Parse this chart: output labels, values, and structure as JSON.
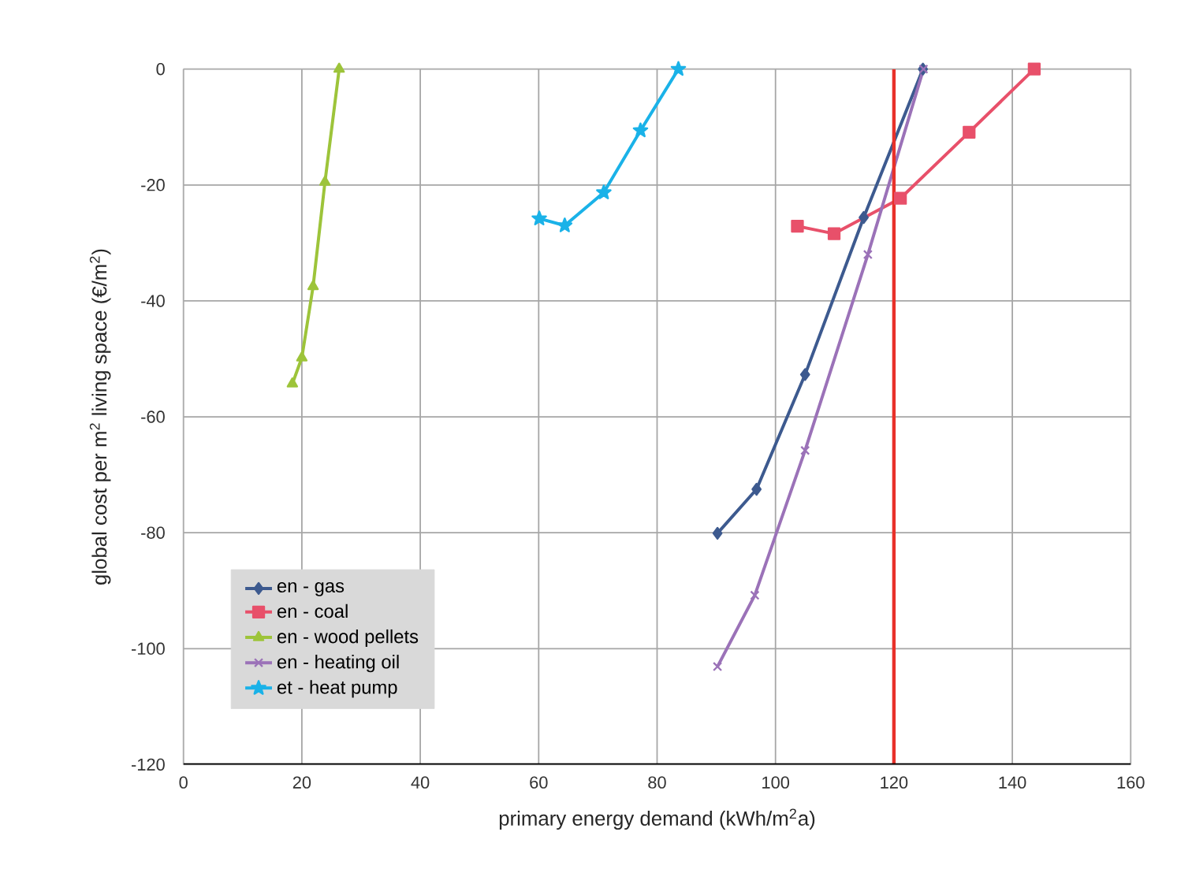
{
  "chart_data": {
    "type": "line",
    "xlabel": "primary energy demand (kWh/m$^{2}$a)",
    "ylabel": "global cost per m$^{2}$ living space (€/m$^{2}$)",
    "xlim": [
      0,
      160
    ],
    "xticks": [
      0,
      20,
      40,
      60,
      80,
      100,
      120,
      140,
      160
    ],
    "ylim": [
      -120,
      0
    ],
    "yticks": [
      -120,
      -100,
      -80,
      -60,
      -40,
      -20,
      0
    ],
    "grid": true,
    "legend": "bottom left",
    "ref_lines": [
      {
        "axis": "x",
        "value": 120,
        "color": "#e8312a"
      }
    ],
    "series": [
      {
        "name": "en - gas",
        "color": "#3d5a8f",
        "marker": "diamond",
        "x": [
          90.2,
          96.8,
          105.0,
          114.9,
          124.9
        ],
        "values": [
          -80.1,
          -72.5,
          -52.7,
          -25.6,
          0
        ]
      },
      {
        "name": "en - coal",
        "color": "#e8506a",
        "marker": "square",
        "x": [
          103.7,
          109.9,
          121.1,
          132.7,
          143.7
        ],
        "values": [
          -27.1,
          -28.4,
          -22.3,
          -10.9,
          0
        ]
      },
      {
        "name": "en - wood pellets",
        "color": "#9dc43a",
        "marker": "triangle",
        "x": [
          18.4,
          20.0,
          21.9,
          23.9,
          26.3
        ],
        "values": [
          -54.3,
          -49.8,
          -37.5,
          -19.5,
          0
        ]
      },
      {
        "name": "en - heating oil",
        "color": "#9b72b8",
        "marker": "cross",
        "x": [
          90.2,
          96.5,
          105.0,
          115.6,
          125.0
        ],
        "values": [
          -103.1,
          -90.8,
          -65.8,
          -32.0,
          0
        ]
      },
      {
        "name": "et - heat pump",
        "color": "#1ab2e8",
        "marker": "star",
        "x": [
          60.1,
          64.4,
          71.0,
          77.2,
          83.6
        ],
        "values": [
          -25.8,
          -27.0,
          -21.3,
          -10.6,
          0
        ]
      }
    ]
  }
}
